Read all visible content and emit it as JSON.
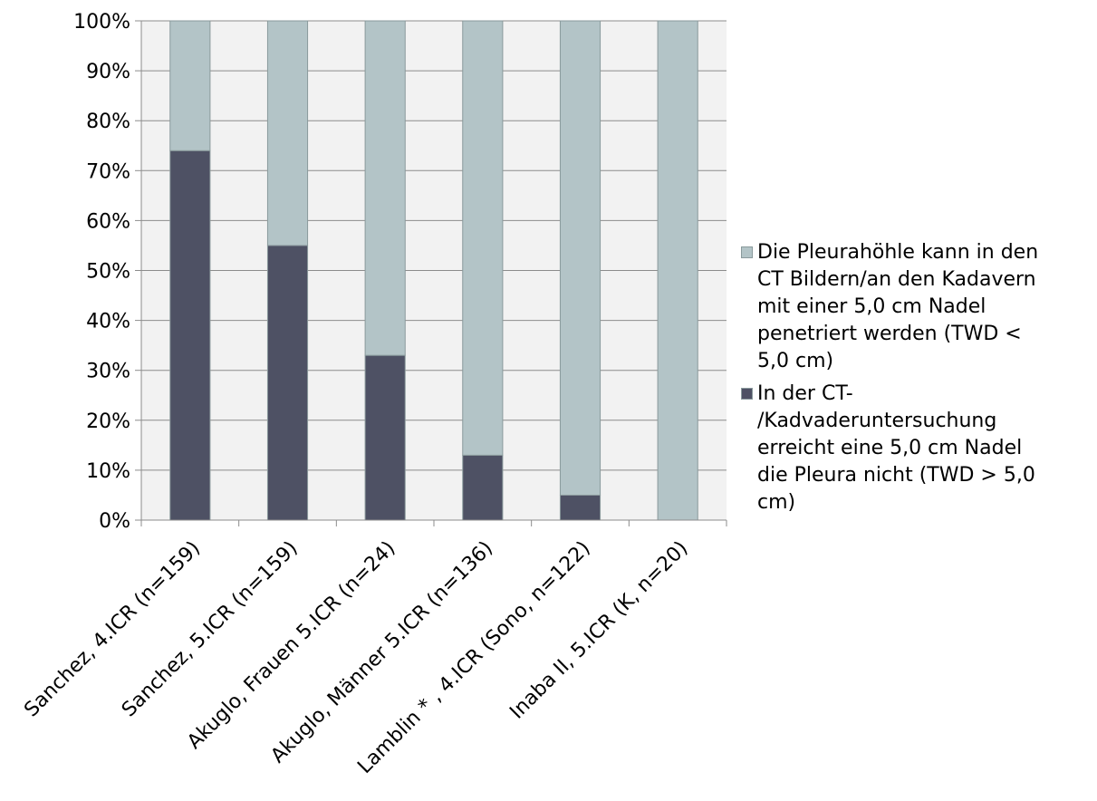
{
  "chart_data": {
    "type": "bar",
    "stacked": true,
    "categories": [
      "Sanchez, 4.ICR (n=159)",
      "Sanchez, 5.ICR (n=159)",
      "Akuglo, Frauen 5.ICR (n=24)",
      "Akuglo, Männer 5.ICR (n=136)",
      "Lamblin * , 4.ICR (Sono, n=122)",
      "Inaba II, 5.ICR (K, n=20)"
    ],
    "series": [
      {
        "name": "In der CT-/Kadvaderuntersuchung erreicht eine 5,0 cm Nadel die Pleura nicht (TWD > 5,0 cm)",
        "color": "#4e5164",
        "values": [
          74,
          55,
          33,
          13,
          5,
          0
        ]
      },
      {
        "name": "Die Pleurahöhle kann in den CT Bildern/an den Kadavern mit einer 5,0 cm Nadel penetriert werden (TWD < 5,0 cm)",
        "color": "#b3c4c7",
        "values": [
          26,
          45,
          67,
          87,
          95,
          100
        ]
      }
    ],
    "y_ticks": [
      "0%",
      "10%",
      "20%",
      "30%",
      "40%",
      "50%",
      "60%",
      "70%",
      "80%",
      "90%",
      "100%"
    ],
    "ylim": [
      0,
      100
    ],
    "grid": true,
    "plot_background": "#f2f2f2",
    "legend_position": "right"
  },
  "legend": {
    "items": [
      {
        "label_lines": [
          "Die Pleurahöhle kann in den",
          "CT Bildern/an den Kadavern",
          "mit einer 5,0 cm Nadel",
          "penetriert werden (TWD <",
          "5,0 cm)"
        ],
        "color": "#b3c4c7"
      },
      {
        "label_lines": [
          "In der CT-",
          "/Kadvaderuntersuchung",
          "erreicht eine 5,0 cm Nadel",
          "die Pleura nicht (TWD > 5,0",
          "cm)"
        ],
        "color": "#4e5164"
      }
    ]
  }
}
